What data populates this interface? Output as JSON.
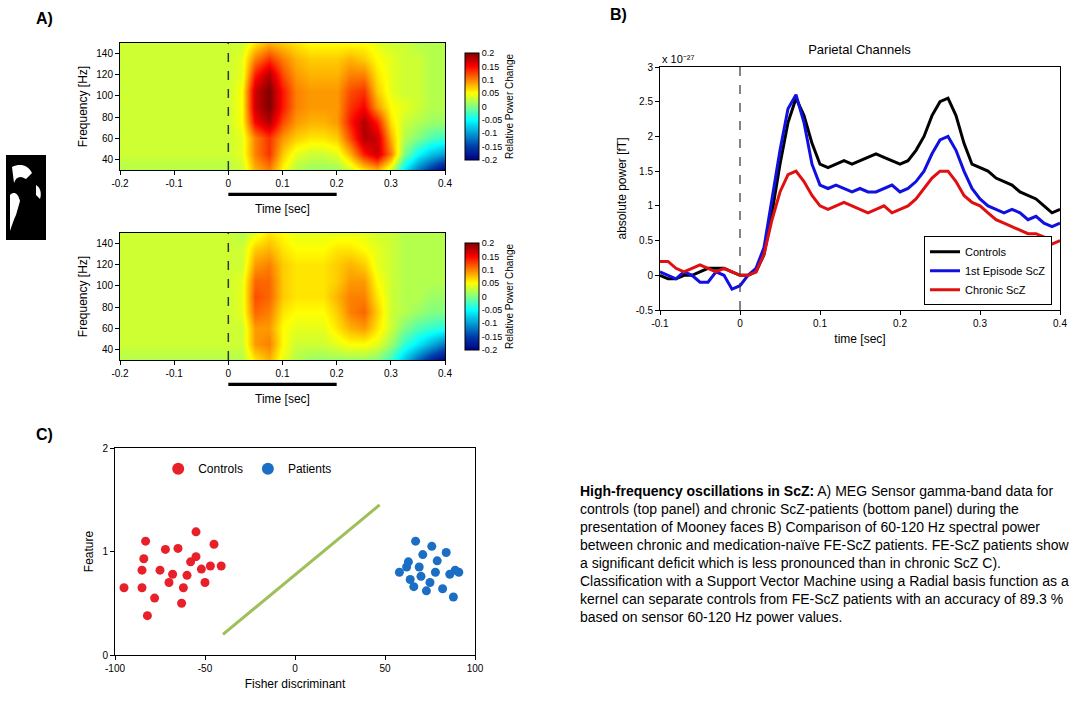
{
  "chart_data": [
    {
      "type": "heatmap",
      "panel": "A)",
      "xlabel": "Time [sec]",
      "ylabel": "Frequency [Hz]",
      "x": [
        -0.2,
        -0.175,
        -0.15,
        -0.125,
        -0.1,
        -0.075,
        -0.05,
        -0.025,
        0,
        0.025,
        0.05,
        0.075,
        0.1,
        0.125,
        0.15,
        0.175,
        0.2,
        0.225,
        0.25,
        0.275,
        0.3,
        0.325,
        0.35,
        0.375,
        0.4
      ],
      "y": [
        30,
        45,
        60,
        75,
        90,
        105,
        120,
        135,
        150
      ],
      "z": [
        [
          0.02,
          0.02,
          0.02,
          0.02,
          0.02,
          0.02,
          0.02,
          0.02,
          0.02,
          0.03,
          0.08,
          0.1,
          0.05,
          0.02,
          0.01,
          0.01,
          0.01,
          0.03,
          0.06,
          0.08,
          0.03,
          -0.06,
          -0.12,
          -0.16,
          -0.2
        ],
        [
          0.03,
          0.03,
          0.03,
          0.03,
          0.03,
          0.03,
          0.03,
          0.03,
          0.03,
          0.04,
          0.1,
          0.13,
          0.07,
          0.04,
          0.03,
          0.03,
          0.04,
          0.08,
          0.14,
          0.17,
          0.1,
          0,
          -0.05,
          -0.08,
          -0.1
        ],
        [
          0.03,
          0.03,
          0.03,
          0.03,
          0.03,
          0.03,
          0.03,
          0.03,
          0.03,
          0.04,
          0.1,
          0.13,
          0.09,
          0.07,
          0.06,
          0.06,
          0.07,
          0.12,
          0.18,
          0.17,
          0.08,
          0.02,
          0,
          -0.02,
          -0.03
        ],
        [
          0.03,
          0.03,
          0.03,
          0.03,
          0.03,
          0.03,
          0.03,
          0.03,
          0.03,
          0.05,
          0.15,
          0.18,
          0.12,
          0.09,
          0.08,
          0.08,
          0.09,
          0.14,
          0.18,
          0.14,
          0.06,
          0.03,
          0.02,
          0.01,
          0.01
        ],
        [
          0.03,
          0.03,
          0.03,
          0.03,
          0.03,
          0.03,
          0.03,
          0.03,
          0.03,
          0.05,
          0.17,
          0.2,
          0.14,
          0.1,
          0.09,
          0.09,
          0.09,
          0.13,
          0.15,
          0.09,
          0.05,
          0.04,
          0.03,
          0.02,
          0.02
        ],
        [
          0.03,
          0.03,
          0.03,
          0.03,
          0.03,
          0.03,
          0.03,
          0.03,
          0.03,
          0.05,
          0.17,
          0.2,
          0.14,
          0.1,
          0.09,
          0.09,
          0.09,
          0.12,
          0.13,
          0.07,
          0.04,
          0.03,
          0.03,
          0.02,
          0.02
        ],
        [
          0.03,
          0.03,
          0.03,
          0.03,
          0.03,
          0.03,
          0.03,
          0.03,
          0.03,
          0.04,
          0.14,
          0.18,
          0.12,
          0.09,
          0.08,
          0.08,
          0.08,
          0.1,
          0.1,
          0.06,
          0.04,
          0.03,
          0.03,
          0.02,
          0.02
        ],
        [
          0.03,
          0.03,
          0.03,
          0.03,
          0.03,
          0.03,
          0.03,
          0.03,
          0.03,
          0.04,
          0.1,
          0.13,
          0.1,
          0.08,
          0.07,
          0.07,
          0.07,
          0.08,
          0.07,
          0.05,
          0.04,
          0.03,
          0.03,
          0.02,
          0.02
        ],
        [
          0.03,
          0.03,
          0.03,
          0.03,
          0.03,
          0.03,
          0.03,
          0.03,
          0.03,
          0.03,
          0.06,
          0.08,
          0.07,
          0.06,
          0.05,
          0.05,
          0.05,
          0.05,
          0.05,
          0.04,
          0.03,
          0.03,
          0.02,
          0.02,
          0.02
        ]
      ],
      "xlim": [
        -0.2,
        0.4
      ],
      "xticks": [
        -0.2,
        -0.1,
        0,
        0.1,
        0.2,
        0.3,
        0.4
      ],
      "ylim": [
        30,
        150
      ],
      "yticks": [
        40,
        60,
        80,
        100,
        120,
        140
      ],
      "colorbar": {
        "title": "Relative Power Change",
        "range": [
          -0.2,
          0.2
        ],
        "ticks": [
          -0.2,
          -0.15,
          -0.1,
          -0.05,
          0,
          0.05,
          0.1,
          0.15,
          0.2
        ]
      },
      "vline": 0,
      "stimulus_bar": [
        0,
        0.2
      ]
    },
    {
      "type": "heatmap",
      "xlabel": "Time [sec]",
      "ylabel": "Frequency [Hz]",
      "x": [
        -0.2,
        -0.175,
        -0.15,
        -0.125,
        -0.1,
        -0.075,
        -0.05,
        -0.025,
        0,
        0.025,
        0.05,
        0.075,
        0.1,
        0.125,
        0.15,
        0.175,
        0.2,
        0.225,
        0.25,
        0.275,
        0.3,
        0.325,
        0.35,
        0.375,
        0.4
      ],
      "y": [
        30,
        45,
        60,
        75,
        90,
        105,
        120,
        135,
        150
      ],
      "z": [
        [
          0.02,
          0.02,
          0.02,
          0.02,
          0.02,
          0.02,
          0.02,
          0.02,
          0.02,
          0.02,
          0.06,
          0.08,
          0.04,
          0.02,
          0.01,
          0.01,
          0.01,
          0.01,
          0.01,
          0,
          -0.03,
          -0.08,
          -0.13,
          -0.17,
          -0.2
        ],
        [
          0.03,
          0.03,
          0.03,
          0.03,
          0.03,
          0.03,
          0.03,
          0.03,
          0.03,
          0.03,
          0.09,
          0.1,
          0.05,
          0.03,
          0.03,
          0.03,
          0.04,
          0.05,
          0.05,
          0.04,
          0.01,
          -0.03,
          -0.06,
          -0.09,
          -0.12
        ],
        [
          0.03,
          0.03,
          0.03,
          0.03,
          0.03,
          0.03,
          0.03,
          0.03,
          0.03,
          0.03,
          0.09,
          0.09,
          0.05,
          0.04,
          0.04,
          0.04,
          0.06,
          0.08,
          0.09,
          0.06,
          0.03,
          0,
          -0.02,
          -0.03,
          -0.04
        ],
        [
          0.03,
          0.03,
          0.03,
          0.03,
          0.03,
          0.03,
          0.03,
          0.03,
          0.03,
          0.04,
          0.11,
          0.1,
          0.06,
          0.05,
          0.05,
          0.05,
          0.07,
          0.1,
          0.11,
          0.07,
          0.03,
          0.02,
          0.01,
          0,
          0
        ],
        [
          0.03,
          0.03,
          0.03,
          0.03,
          0.03,
          0.03,
          0.03,
          0.03,
          0.03,
          0.04,
          0.12,
          0.11,
          0.07,
          0.06,
          0.06,
          0.06,
          0.08,
          0.1,
          0.1,
          0.06,
          0.03,
          0.02,
          0.02,
          0.01,
          0.01
        ],
        [
          0.03,
          0.03,
          0.03,
          0.03,
          0.03,
          0.03,
          0.03,
          0.03,
          0.03,
          0.04,
          0.11,
          0.11,
          0.07,
          0.06,
          0.06,
          0.06,
          0.07,
          0.09,
          0.09,
          0.05,
          0.03,
          0.02,
          0.02,
          0.02,
          0.02
        ],
        [
          0.03,
          0.03,
          0.03,
          0.03,
          0.03,
          0.03,
          0.03,
          0.03,
          0.03,
          0.03,
          0.09,
          0.1,
          0.07,
          0.06,
          0.06,
          0.06,
          0.07,
          0.08,
          0.07,
          0.04,
          0.03,
          0.02,
          0.02,
          0.02,
          0.02
        ],
        [
          0.03,
          0.03,
          0.03,
          0.03,
          0.03,
          0.03,
          0.03,
          0.03,
          0.03,
          0.03,
          0.07,
          0.08,
          0.06,
          0.05,
          0.05,
          0.05,
          0.06,
          0.06,
          0.05,
          0.04,
          0.03,
          0.02,
          0.02,
          0.02,
          0.02
        ],
        [
          0.03,
          0.03,
          0.03,
          0.03,
          0.03,
          0.03,
          0.03,
          0.03,
          0.03,
          0.02,
          0.04,
          0.06,
          0.05,
          0.04,
          0.04,
          0.04,
          0.04,
          0.04,
          0.04,
          0.03,
          0.03,
          0.02,
          0.02,
          0.02,
          0.02
        ]
      ],
      "xlim": [
        -0.2,
        0.4
      ],
      "xticks": [
        -0.2,
        -0.1,
        0,
        0.1,
        0.2,
        0.3,
        0.4
      ],
      "ylim": [
        30,
        150
      ],
      "yticks": [
        40,
        60,
        80,
        100,
        120,
        140
      ],
      "colorbar": {
        "title": "Relative Power Change",
        "range": [
          -0.2,
          0.2
        ],
        "ticks": [
          -0.2,
          -0.15,
          -0.1,
          -0.05,
          0,
          0.05,
          0.1,
          0.15,
          0.2
        ]
      },
      "vline": 0,
      "stimulus_bar": [
        0,
        0.2
      ]
    },
    {
      "type": "line",
      "panel": "B)",
      "title": "Parietal Channels",
      "y_multiplier": "x 10⁻²⁷",
      "xlabel": "time [sec]",
      "ylabel": "absolute power [fT]",
      "x": [
        -0.1,
        -0.09,
        -0.08,
        -0.07,
        -0.06,
        -0.05,
        -0.04,
        -0.03,
        -0.02,
        -0.01,
        0,
        0.01,
        0.02,
        0.03,
        0.04,
        0.05,
        0.06,
        0.07,
        0.08,
        0.09,
        0.1,
        0.11,
        0.12,
        0.13,
        0.14,
        0.15,
        0.16,
        0.17,
        0.18,
        0.19,
        0.2,
        0.21,
        0.22,
        0.23,
        0.24,
        0.25,
        0.26,
        0.27,
        0.28,
        0.29,
        0.3,
        0.31,
        0.32,
        0.33,
        0.34,
        0.35,
        0.36,
        0.37,
        0.38,
        0.39,
        0.4
      ],
      "series": [
        {
          "name": "Controls",
          "color": "#000000",
          "values": [
            0,
            -0.05,
            -0.05,
            0,
            0,
            0.05,
            0.1,
            0.1,
            0.1,
            0.05,
            0,
            0,
            0.05,
            0.3,
            0.9,
            1.6,
            2.2,
            2.55,
            2.3,
            1.9,
            1.6,
            1.55,
            1.6,
            1.65,
            1.6,
            1.65,
            1.7,
            1.75,
            1.7,
            1.65,
            1.6,
            1.65,
            1.8,
            2.0,
            2.3,
            2.5,
            2.55,
            2.3,
            1.9,
            1.6,
            1.55,
            1.5,
            1.4,
            1.35,
            1.3,
            1.2,
            1.15,
            1.1,
            1.0,
            0.9,
            0.95
          ]
        },
        {
          "name": "1st Episode ScZ",
          "color": "#1010e0",
          "values": [
            0.05,
            0,
            -0.05,
            0.05,
            0,
            -0.1,
            -0.1,
            0.05,
            0,
            -0.2,
            -0.15,
            0,
            0.1,
            0.4,
            1.1,
            1.8,
            2.4,
            2.6,
            2.2,
            1.6,
            1.3,
            1.25,
            1.3,
            1.25,
            1.2,
            1.25,
            1.2,
            1.2,
            1.25,
            1.3,
            1.2,
            1.25,
            1.35,
            1.5,
            1.75,
            1.95,
            2.0,
            1.8,
            1.5,
            1.25,
            1.1,
            1.0,
            0.95,
            0.9,
            0.95,
            0.9,
            0.8,
            0.85,
            0.75,
            0.7,
            0.75
          ]
        },
        {
          "name": "Chronic ScZ",
          "color": "#e01010",
          "values": [
            0.2,
            0.2,
            0.1,
            0.05,
            0.1,
            0.15,
            0.1,
            0.05,
            0.1,
            0.05,
            0,
            0,
            0.05,
            0.3,
            0.8,
            1.2,
            1.45,
            1.5,
            1.35,
            1.15,
            1.0,
            0.95,
            1.0,
            1.05,
            1.0,
            0.95,
            0.9,
            0.95,
            1.0,
            0.9,
            0.95,
            1.0,
            1.1,
            1.25,
            1.4,
            1.5,
            1.5,
            1.35,
            1.15,
            1.05,
            1.0,
            0.9,
            0.8,
            0.75,
            0.7,
            0.65,
            0.6,
            0.6,
            0.55,
            0.45,
            0.5
          ]
        }
      ],
      "xlim": [
        -0.1,
        0.4
      ],
      "xticks": [
        -0.1,
        0,
        0.1,
        0.2,
        0.3,
        0.4
      ],
      "ylim": [
        -0.5,
        3
      ],
      "yticks": [
        -0.5,
        0,
        0.5,
        1,
        1.5,
        2,
        2.5,
        3
      ],
      "legend": "bottom right",
      "vline": 0
    },
    {
      "type": "scatter",
      "panel": "C)",
      "xlabel": "Fisher discriminant",
      "ylabel": "Feature",
      "marker": "circle",
      "series": [
        {
          "name": "Controls",
          "color": "#e8202a",
          "x": [
            -95,
            -85,
            -82,
            -85,
            -84,
            -83,
            -78,
            -75,
            -72,
            -70,
            -68,
            -65,
            -62,
            -63,
            -60,
            -58,
            -55,
            -55,
            -52,
            -50,
            -47,
            -45,
            -41
          ],
          "y": [
            0.65,
            0.65,
            0.38,
            0.82,
            0.93,
            1.1,
            0.55,
            0.82,
            1.02,
            0.7,
            0.78,
            1.03,
            0.65,
            0.5,
            0.77,
            0.9,
            1.19,
            0.95,
            0.83,
            0.7,
            0.86,
            1.07,
            0.86
          ]
        },
        {
          "name": "Patients",
          "color": "#1a6fc4",
          "x": [
            58,
            62,
            63,
            64,
            66,
            67,
            69,
            70,
            71,
            73,
            75,
            76,
            78,
            79,
            82,
            84,
            86,
            88,
            89,
            91
          ],
          "y": [
            0.8,
            0.85,
            0.9,
            0.73,
            0.66,
            1.1,
            0.85,
            0.76,
            0.97,
            0.62,
            0.7,
            1.05,
            0.8,
            0.91,
            0.64,
            0.99,
            0.78,
            0.56,
            0.82,
            0.8
          ]
        }
      ],
      "boundary": {
        "x": [
          -40,
          47
        ],
        "y": [
          0.2,
          1.45
        ],
        "color": "#9fbf5a"
      },
      "xlim": [
        -100,
        100
      ],
      "xticks": [
        -100,
        -50,
        0,
        50,
        100
      ],
      "ylim": [
        0,
        2
      ],
      "yticks": [
        0,
        1,
        2
      ],
      "legend": "top"
    }
  ],
  "caption": {
    "title": "High-frequency oscillations in ScZ:",
    "text": "A) MEG Sensor gamma-band data for controls (top panel) and chronic ScZ-patients (bottom panel) during the presentation of Mooney faces B) Comparison of 60-120 Hz spectral power between chronic and medication-naïve FE-ScZ patients. FE-ScZ patients show a significant deficit which is less pronounced than in chronic ScZ C). Classification with a Support Vector Machine using a Radial basis function as a kernel can separate controls from FE-ScZ patients with an accuracy of 89.3 % based on sensor 60-120 Hz power values."
  }
}
